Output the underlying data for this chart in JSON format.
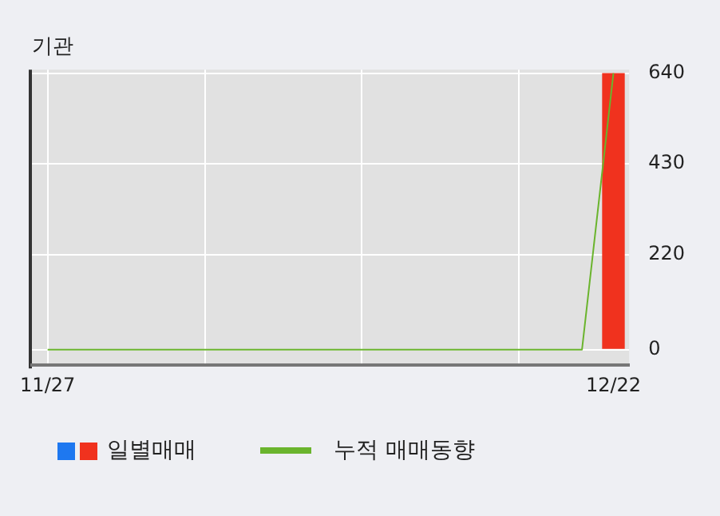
{
  "chart_data": {
    "type": "bar",
    "title": "기관",
    "categories": [
      "11/27",
      null,
      null,
      null,
      null,
      null,
      null,
      null,
      null,
      null,
      null,
      null,
      null,
      null,
      null,
      null,
      null,
      null,
      "12/22"
    ],
    "series": [
      {
        "name": "일별매매",
        "color": "#f0321e",
        "values": [
          0,
          0,
          0,
          0,
          0,
          0,
          0,
          0,
          0,
          0,
          0,
          0,
          0,
          0,
          0,
          0,
          0,
          0,
          640
        ]
      },
      {
        "name": "누적 매매동향",
        "type": "line",
        "color": "#6ab42d",
        "values": [
          0,
          0,
          0,
          0,
          0,
          0,
          0,
          0,
          0,
          0,
          0,
          0,
          0,
          0,
          0,
          0,
          0,
          0,
          640
        ]
      }
    ],
    "ylim": [
      -36,
      648
    ],
    "yticks": [
      0,
      220,
      430,
      640
    ],
    "grid": true,
    "legend": "bottom",
    "marker": "none"
  }
}
